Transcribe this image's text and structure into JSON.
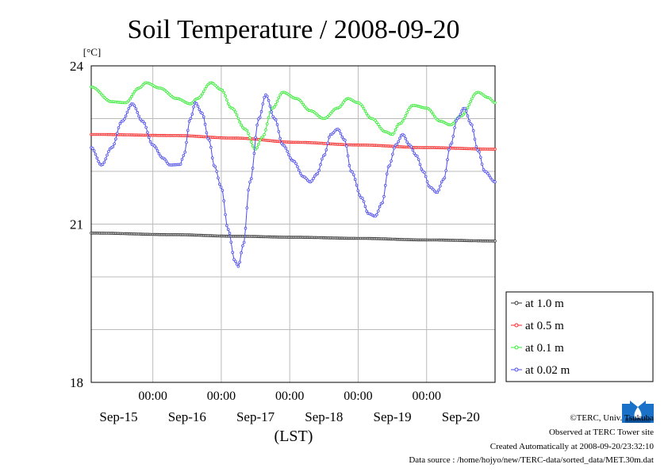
{
  "chart_data": {
    "type": "line",
    "title": "Soil Temperature / 2008-09-20",
    "ylabel": "[°C]",
    "xlabel": "(LST)",
    "ylim": [
      18,
      24
    ],
    "yticks": [
      "18",
      "21",
      "24"
    ],
    "x_range_days": [
      -0.9,
      5.0
    ],
    "x_time_ticks": [
      "00:00",
      "00:00",
      "00:00",
      "00:00",
      "00:00"
    ],
    "x_date_labels": [
      "Sep-15",
      "Sep-16",
      "Sep-17",
      "Sep-18",
      "Sep-19",
      "Sep-20"
    ],
    "grid": true,
    "legend_position": "right-bottom",
    "series": [
      {
        "name": "at 1.0 m",
        "color": "#333333",
        "points": [
          [
            -0.9,
            20.83
          ],
          [
            0.3,
            20.8
          ],
          [
            1.2,
            20.77
          ],
          [
            2.1,
            20.75
          ],
          [
            3.0,
            20.73
          ],
          [
            4.0,
            20.7
          ],
          [
            5.0,
            20.68
          ]
        ]
      },
      {
        "name": "at 0.5 m",
        "color": "#ff2222",
        "points": [
          [
            -0.9,
            22.7
          ],
          [
            0.3,
            22.68
          ],
          [
            1.2,
            22.63
          ],
          [
            2.1,
            22.55
          ],
          [
            3.0,
            22.5
          ],
          [
            4.0,
            22.45
          ],
          [
            5.0,
            22.42
          ]
        ]
      },
      {
        "name": "at 0.1 m",
        "color": "#33ee33",
        "points": [
          [
            -0.9,
            23.6
          ],
          [
            -0.6,
            23.32
          ],
          [
            -0.4,
            23.3
          ],
          [
            -0.2,
            23.58
          ],
          [
            -0.1,
            23.68
          ],
          [
            0.1,
            23.58
          ],
          [
            0.35,
            23.38
          ],
          [
            0.55,
            23.28
          ],
          [
            0.65,
            23.38
          ],
          [
            0.85,
            23.68
          ],
          [
            1.0,
            23.55
          ],
          [
            1.15,
            23.2
          ],
          [
            1.35,
            22.8
          ],
          [
            1.5,
            22.42
          ],
          [
            1.6,
            22.65
          ],
          [
            1.75,
            23.2
          ],
          [
            1.9,
            23.5
          ],
          [
            2.1,
            23.38
          ],
          [
            2.3,
            23.15
          ],
          [
            2.5,
            23.0
          ],
          [
            2.7,
            23.2
          ],
          [
            2.85,
            23.38
          ],
          [
            3.0,
            23.3
          ],
          [
            3.2,
            23.0
          ],
          [
            3.4,
            22.75
          ],
          [
            3.5,
            22.7
          ],
          [
            3.6,
            22.9
          ],
          [
            3.8,
            23.25
          ],
          [
            4.0,
            23.2
          ],
          [
            4.2,
            22.95
          ],
          [
            4.35,
            22.88
          ],
          [
            4.5,
            23.05
          ],
          [
            4.75,
            23.5
          ],
          [
            4.9,
            23.4
          ],
          [
            5.0,
            23.3
          ]
        ]
      },
      {
        "name": "at 0.02 m",
        "color": "#4a4aee",
        "points": [
          [
            -0.9,
            22.45
          ],
          [
            -0.75,
            22.12
          ],
          [
            -0.6,
            22.45
          ],
          [
            -0.45,
            22.95
          ],
          [
            -0.3,
            23.28
          ],
          [
            -0.15,
            22.95
          ],
          [
            0.0,
            22.5
          ],
          [
            0.15,
            22.25
          ],
          [
            0.25,
            22.12
          ],
          [
            0.4,
            22.13
          ],
          [
            0.45,
            22.3
          ],
          [
            0.55,
            23.0
          ],
          [
            0.62,
            23.3
          ],
          [
            0.72,
            23.1
          ],
          [
            0.82,
            22.6
          ],
          [
            0.9,
            22.1
          ],
          [
            1.0,
            21.7
          ],
          [
            1.1,
            20.9
          ],
          [
            1.2,
            20.3
          ],
          [
            1.25,
            20.2
          ],
          [
            1.32,
            20.6
          ],
          [
            1.42,
            21.8
          ],
          [
            1.55,
            23.0
          ],
          [
            1.65,
            23.45
          ],
          [
            1.78,
            23.0
          ],
          [
            1.9,
            22.5
          ],
          [
            2.05,
            22.2
          ],
          [
            2.2,
            21.9
          ],
          [
            2.3,
            21.8
          ],
          [
            2.4,
            21.95
          ],
          [
            2.5,
            22.3
          ],
          [
            2.6,
            22.7
          ],
          [
            2.7,
            22.8
          ],
          [
            2.8,
            22.6
          ],
          [
            2.9,
            22.0
          ],
          [
            3.05,
            21.5
          ],
          [
            3.15,
            21.2
          ],
          [
            3.25,
            21.15
          ],
          [
            3.35,
            21.4
          ],
          [
            3.45,
            22.1
          ],
          [
            3.55,
            22.5
          ],
          [
            3.65,
            22.7
          ],
          [
            3.75,
            22.5
          ],
          [
            3.85,
            22.3
          ],
          [
            3.95,
            22.0
          ],
          [
            4.05,
            21.7
          ],
          [
            4.15,
            21.6
          ],
          [
            4.25,
            21.85
          ],
          [
            4.35,
            22.5
          ],
          [
            4.45,
            23.0
          ],
          [
            4.55,
            23.2
          ],
          [
            4.65,
            22.9
          ],
          [
            4.75,
            22.4
          ],
          [
            4.85,
            22.0
          ],
          [
            5.0,
            21.8
          ]
        ]
      }
    ]
  },
  "credits": {
    "copyright": "©TERC, Univ. Tsukuba",
    "observed": "Observed at TERC Tower site",
    "created": "Created Automatically at 2008-09-20/23:32:10",
    "source": "Data source : /home/hojyo/new/TERC-data/sorted_data/MET.30m.dat"
  }
}
